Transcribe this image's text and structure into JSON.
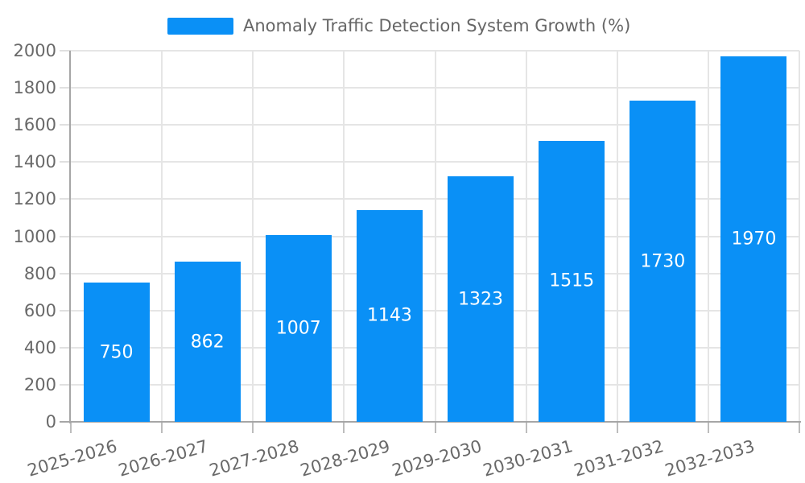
{
  "legend": {
    "label": "Anomaly Traffic Detection System Growth (%)"
  },
  "chart_data": {
    "type": "bar",
    "title": "Anomaly Traffic Detection System Growth (%)",
    "categories": [
      "2025-2026",
      "2026-2027",
      "2027-2028",
      "2028-2029",
      "2029-2030",
      "2030-2031",
      "2031-2032",
      "2032-2033"
    ],
    "values": [
      750,
      862,
      1007,
      1143,
      1323,
      1515,
      1730,
      1970
    ],
    "xlabel": "",
    "ylabel": "",
    "ylim": [
      0,
      2000
    ],
    "yticks": [
      0,
      200,
      400,
      600,
      800,
      1000,
      1200,
      1400,
      1600,
      1800,
      2000
    ],
    "grid": true,
    "legend_position": "top-center",
    "bar_color": "#0a90f6",
    "value_label_color": "#ffffff",
    "axis_color": "#a6a6a6",
    "grid_color": "#e5e5e5",
    "tick_label_color": "#696969",
    "x_label_rotation_deg": -16
  }
}
